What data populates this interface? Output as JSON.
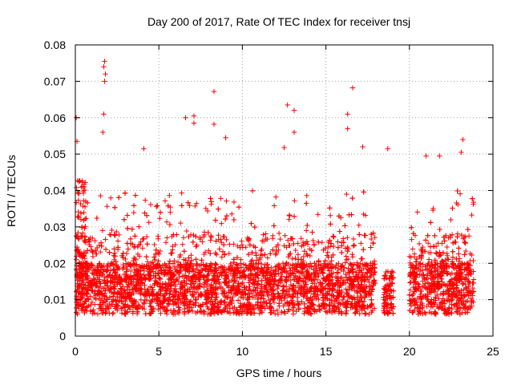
{
  "chart_data": {
    "type": "scatter",
    "title": "Day 200 of 2017, Rate Of TEC Index for receiver tnsj",
    "xlabel": "GPS time / hours",
    "ylabel": "ROTI / TECUs",
    "xlim": [
      0,
      25
    ],
    "ylim": [
      0,
      0.08
    ],
    "grid": true,
    "marker": "+",
    "color": "#ff0000",
    "x_ticks": [
      {
        "value": 0,
        "label": "0"
      },
      {
        "value": 5,
        "label": "5"
      },
      {
        "value": 10,
        "label": "10"
      },
      {
        "value": 15,
        "label": "15"
      },
      {
        "value": 20,
        "label": "20"
      },
      {
        "value": 25,
        "label": "25"
      }
    ],
    "y_ticks": [
      {
        "value": 0,
        "label": "0"
      },
      {
        "value": 0.01,
        "label": "0.01"
      },
      {
        "value": 0.02,
        "label": "0.02"
      },
      {
        "value": 0.03,
        "label": "0.03"
      },
      {
        "value": 0.04,
        "label": "0.04"
      },
      {
        "value": 0.05,
        "label": "0.05"
      },
      {
        "value": 0.06,
        "label": "0.06"
      },
      {
        "value": 0.07,
        "label": "0.07"
      },
      {
        "value": 0.08,
        "label": "0.08"
      }
    ],
    "data_gaps_hours": [
      [
        17.95,
        18.45
      ],
      [
        19.05,
        20.0
      ],
      [
        23.85,
        25.0
      ]
    ],
    "notable_points": [
      {
        "x": 0.05,
        "y": 0.06
      },
      {
        "x": 0.1,
        "y": 0.0535
      },
      {
        "x": 1.75,
        "y": 0.0755
      },
      {
        "x": 1.7,
        "y": 0.074
      },
      {
        "x": 1.8,
        "y": 0.072
      },
      {
        "x": 1.75,
        "y": 0.07
      },
      {
        "x": 1.7,
        "y": 0.061
      },
      {
        "x": 1.65,
        "y": 0.056
      },
      {
        "x": 4.1,
        "y": 0.0515
      },
      {
        "x": 6.6,
        "y": 0.06
      },
      {
        "x": 7.1,
        "y": 0.0605
      },
      {
        "x": 7.1,
        "y": 0.0585
      },
      {
        "x": 8.3,
        "y": 0.0672
      },
      {
        "x": 8.3,
        "y": 0.0582
      },
      {
        "x": 9.0,
        "y": 0.0545
      },
      {
        "x": 12.7,
        "y": 0.0635
      },
      {
        "x": 13.1,
        "y": 0.062
      },
      {
        "x": 13.1,
        "y": 0.056
      },
      {
        "x": 12.5,
        "y": 0.0518
      },
      {
        "x": 16.3,
        "y": 0.061
      },
      {
        "x": 16.6,
        "y": 0.0682
      },
      {
        "x": 16.3,
        "y": 0.057
      },
      {
        "x": 17.2,
        "y": 0.052
      },
      {
        "x": 18.7,
        "y": 0.0515
      },
      {
        "x": 21.0,
        "y": 0.0495
      },
      {
        "x": 21.8,
        "y": 0.0495
      },
      {
        "x": 23.2,
        "y": 0.054
      },
      {
        "x": 23.1,
        "y": 0.0505
      }
    ]
  }
}
